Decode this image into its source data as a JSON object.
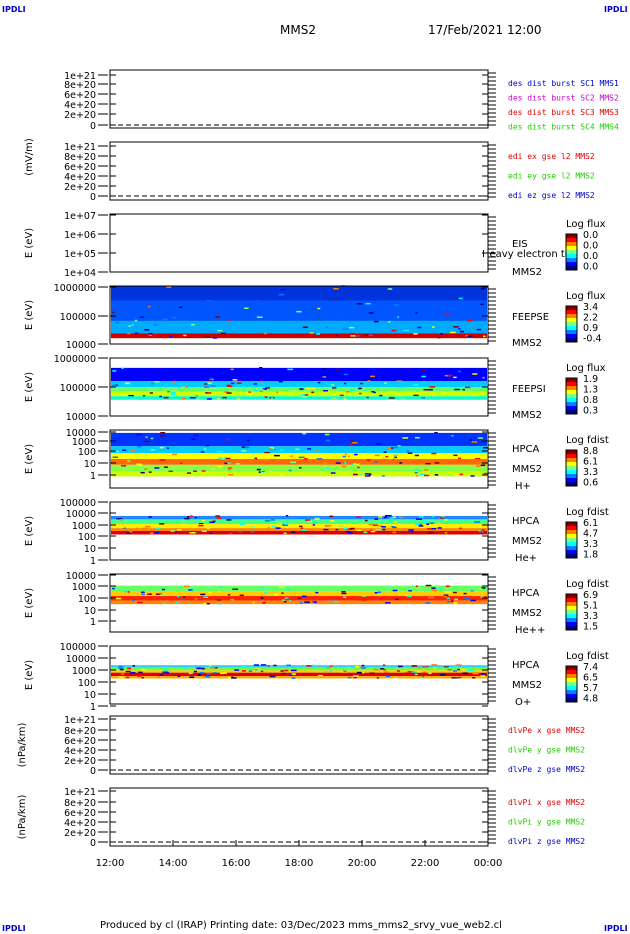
{
  "corners": {
    "tl": "IPDLI",
    "tr": "IPDLI",
    "bl": "IPDLI",
    "br": "IPDLI"
  },
  "header": {
    "mission": "MMS2",
    "datetime": "17/Feb/2021 12:00"
  },
  "footer": {
    "text": "Produced by cl (IRAP)   Printing date: 03/Dec/2023   mms_mms2_srvy_vue_web2.cl"
  },
  "colors": {
    "blue": "#0000cc",
    "magenta": "#cc00cc",
    "red": "#dd0000",
    "green": "#22cc00",
    "spectro": [
      "#00007f",
      "#0000ff",
      "#007fff",
      "#00ffff",
      "#7fff7f",
      "#ffff00",
      "#ff7f00",
      "#ff0000",
      "#7f0000"
    ]
  },
  "chart_data": [
    {
      "type": "line",
      "panel": "dist",
      "ylabel": "",
      "yticks": [
        "1e+21",
        "8e+20",
        "6e+20",
        "4e+20",
        "2e+20",
        "0"
      ],
      "legend": [
        {
          "text": "des dist burst SC1 MMS1",
          "color": "#0000cc"
        },
        {
          "text": "des dist burst SC2 MMS2",
          "color": "#cc00cc"
        },
        {
          "text": "des dist burst SC3 MMS3",
          "color": "#dd0000"
        },
        {
          "text": "des dist burst SC4 MMS4",
          "color": "#22cc00"
        }
      ],
      "series": []
    },
    {
      "type": "line",
      "panel": "edi",
      "ylabel": "(mV/m)",
      "yticks": [
        "1e+21",
        "8e+20",
        "6e+20",
        "4e+20",
        "2e+20",
        "0"
      ],
      "legend": [
        {
          "text": "edi ex gse l2 MMS2",
          "color": "#dd0000"
        },
        {
          "text": "edi ey gse l2 MMS2",
          "color": "#22cc00"
        },
        {
          "text": "edi ez gse l2 MMS2",
          "color": "#0000cc"
        }
      ],
      "series": []
    },
    {
      "type": "heatmap",
      "panel": "eis",
      "ylabel": "E (eV)",
      "yticks": [
        "1e+07",
        "1e+06",
        "1e+05",
        "1e+04"
      ],
      "labels": [
        "EIS",
        "MMS2"
      ],
      "overlay": "Heavy electron to",
      "colorbar": {
        "title": "Log flux",
        "ticks": [
          "0.0",
          "0.0",
          "0.0",
          "0.0"
        ]
      },
      "bands": []
    },
    {
      "type": "heatmap",
      "panel": "feepse",
      "ylabel": "E (eV)",
      "yticks": [
        "1000000",
        "100000",
        "10000"
      ],
      "labels": [
        "FEEPSE",
        "MMS2"
      ],
      "colorbar": {
        "title": "Log flux",
        "ticks": [
          "3.4",
          "2.2",
          "0.9",
          "-0.4"
        ]
      },
      "bands": [
        {
          "from": 0.0,
          "to": 0.88,
          "color": "#0033dd"
        },
        {
          "from": 0.25,
          "to": 0.75,
          "color": "#0055ff"
        },
        {
          "from": 0.6,
          "to": 0.82,
          "color": "#00aaff"
        },
        {
          "from": 0.82,
          "to": 0.9,
          "color": "#cc0000"
        }
      ]
    },
    {
      "type": "heatmap",
      "panel": "feepsi",
      "ylabel": "E (eV)",
      "yticks": [
        "1000000",
        "100000",
        "10000"
      ],
      "labels": [
        "FEEPSI",
        "MMS2"
      ],
      "colorbar": {
        "title": "Log flux",
        "ticks": [
          "1.9",
          "1.3",
          "0.8",
          "0.3"
        ]
      },
      "bands": [
        {
          "from": 0.17,
          "to": 0.4,
          "color": "#0000ff"
        },
        {
          "from": 0.4,
          "to": 0.5,
          "color": "#00ccff"
        },
        {
          "from": 0.5,
          "to": 0.58,
          "color": "#66ff66"
        },
        {
          "from": 0.58,
          "to": 0.66,
          "color": "#ccff00"
        },
        {
          "from": 0.66,
          "to": 0.72,
          "color": "#00ffcc"
        }
      ]
    },
    {
      "type": "heatmap",
      "panel": "hpca_h",
      "ylabel": "E (eV)",
      "yticks": [
        "10000",
        "1000",
        "100",
        "10",
        "1"
      ],
      "labels": [
        "HPCA",
        "MMS2",
        "H+"
      ],
      "colorbar": {
        "title": "Log fdist",
        "ticks": [
          "8.8",
          "6.1",
          "3.3",
          "0.6"
        ]
      },
      "bands": [
        {
          "from": 0.05,
          "to": 0.28,
          "color": "#0033ff"
        },
        {
          "from": 0.28,
          "to": 0.4,
          "color": "#00ccff"
        },
        {
          "from": 0.4,
          "to": 0.5,
          "color": "#ffff00"
        },
        {
          "from": 0.5,
          "to": 0.6,
          "color": "#ff6600"
        },
        {
          "from": 0.6,
          "to": 0.72,
          "color": "#88ff44"
        },
        {
          "from": 0.72,
          "to": 0.8,
          "color": "#ccff00"
        }
      ]
    },
    {
      "type": "heatmap",
      "panel": "hpca_he",
      "ylabel": "E (eV)",
      "yticks": [
        "100000",
        "10000",
        "1000",
        "100",
        "10",
        "1"
      ],
      "labels": [
        "HPCA",
        "MMS2",
        "He+"
      ],
      "colorbar": {
        "title": "Log fdist",
        "ticks": [
          "6.1",
          "4.7",
          "3.3",
          "1.8"
        ]
      },
      "bands": [
        {
          "from": 0.24,
          "to": 0.3,
          "color": "#2288ff"
        },
        {
          "from": 0.3,
          "to": 0.38,
          "color": "#44ff88"
        },
        {
          "from": 0.38,
          "to": 0.45,
          "color": "#ffee00"
        },
        {
          "from": 0.45,
          "to": 0.5,
          "color": "#ff8800"
        },
        {
          "from": 0.5,
          "to": 0.56,
          "color": "#dd0000"
        }
      ]
    },
    {
      "type": "heatmap",
      "panel": "hpca_hepp",
      "ylabel": "E (eV)",
      "yticks": [
        "10000",
        "1000",
        "100",
        "10",
        "1"
      ],
      "labels": [
        "HPCA",
        "MMS2",
        "He++"
      ],
      "colorbar": {
        "title": "Log fdist",
        "ticks": [
          "6.9",
          "5.1",
          "3.3",
          "1.5"
        ]
      },
      "bands": [
        {
          "from": 0.2,
          "to": 0.3,
          "color": "#66ff66"
        },
        {
          "from": 0.3,
          "to": 0.38,
          "color": "#ffcc00"
        },
        {
          "from": 0.38,
          "to": 0.46,
          "color": "#ff2200"
        },
        {
          "from": 0.46,
          "to": 0.52,
          "color": "#ff8800"
        }
      ]
    },
    {
      "type": "heatmap",
      "panel": "hpca_o",
      "ylabel": "E (eV)",
      "yticks": [
        "100000",
        "10000",
        "1000",
        "100",
        "10",
        "1"
      ],
      "labels": [
        "HPCA",
        "MMS2",
        "O+"
      ],
      "colorbar": {
        "title": "Log fdist",
        "ticks": [
          "7.4",
          "6.5",
          "5.7",
          "4.8"
        ]
      },
      "bands": [
        {
          "from": 0.33,
          "to": 0.37,
          "color": "#33ccff"
        },
        {
          "from": 0.37,
          "to": 0.42,
          "color": "#66ff44"
        },
        {
          "from": 0.42,
          "to": 0.46,
          "color": "#ffcc00"
        },
        {
          "from": 0.46,
          "to": 0.52,
          "color": "#dd0000"
        },
        {
          "from": 0.52,
          "to": 0.56,
          "color": "#ffaa00"
        }
      ]
    },
    {
      "type": "line",
      "panel": "dvpe",
      "ylabel": "(nPa/km)",
      "yticks": [
        "1e+21",
        "8e+20",
        "6e+20",
        "4e+20",
        "2e+20",
        "0"
      ],
      "legend": [
        {
          "text": "dlvPe x gse MMS2",
          "color": "#dd0000"
        },
        {
          "text": "dlvPe y gse MMS2",
          "color": "#22cc00"
        },
        {
          "text": "dlvPe z gse MMS2",
          "color": "#0000cc"
        }
      ],
      "series": []
    },
    {
      "type": "line",
      "panel": "dvpi",
      "ylabel": "(nPa/km)",
      "yticks": [
        "1e+21",
        "8e+20",
        "6e+20",
        "4e+20",
        "2e+20",
        "0"
      ],
      "legend": [
        {
          "text": "dlvPi x gse MMS2",
          "color": "#dd0000"
        },
        {
          "text": "dlvPi y gse MMS2",
          "color": "#22cc00"
        },
        {
          "text": "dlvPi z gse MMS2",
          "color": "#0000cc"
        }
      ],
      "series": []
    }
  ],
  "xaxis": {
    "ticks": [
      "12:00",
      "14:00",
      "16:00",
      "18:00",
      "20:00",
      "22:00",
      "00:00"
    ]
  }
}
